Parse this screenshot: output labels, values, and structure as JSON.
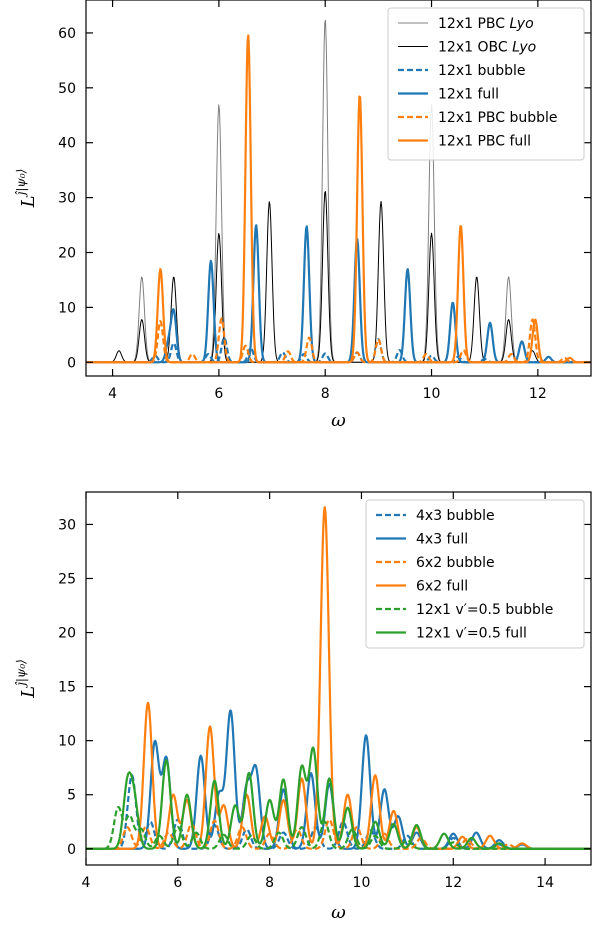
{
  "chart_data": [
    {
      "type": "line",
      "xlabel": "ω",
      "ylabel": "L^{ĵ|ψ0⟩}",
      "xlim": [
        3.5,
        13
      ],
      "ylim": [
        -2.5,
        66
      ],
      "xticks": [
        4,
        6,
        8,
        10,
        12
      ],
      "yticks": [
        0,
        10,
        20,
        30,
        40,
        50,
        60
      ],
      "grid": false,
      "legend_position": "top-right",
      "legend_title": "",
      "width": 0.05,
      "series": [
        {
          "name": "12x1 PBC Lyo",
          "color": "#808080",
          "style": "solid",
          "lw": 1,
          "base": 0,
          "peaks": [
            [
              4.55,
              15.6
            ],
            [
              6.0,
              47
            ],
            [
              8.0,
              62.7
            ],
            [
              10.0,
              47
            ],
            [
              11.45,
              15.6
            ]
          ]
        },
        {
          "name": "12x1 OBC Lyo",
          "color": "#000000",
          "style": "solid",
          "lw": 1,
          "base": 0,
          "peaks": [
            [
              4.12,
              2.1
            ],
            [
              4.55,
              7.8
            ],
            [
              5.15,
              15.6
            ],
            [
              6.0,
              23.5
            ],
            [
              6.95,
              29.3
            ],
            [
              8.0,
              31.3
            ],
            [
              9.05,
              29.3
            ],
            [
              10.0,
              23.5
            ],
            [
              10.85,
              15.6
            ],
            [
              11.45,
              7.8
            ],
            [
              11.9,
              2.1
            ]
          ]
        },
        {
          "name": "12x1 bubble",
          "color": "#1f77b4",
          "style": "dashed",
          "lw": 2,
          "base": 0,
          "peaks": [
            [
              4.8,
              1.2
            ],
            [
              5.15,
              3.5
            ],
            [
              5.8,
              1.5
            ],
            [
              6.1,
              4.5
            ],
            [
              6.6,
              2.6
            ],
            [
              7.2,
              1.8
            ],
            [
              7.6,
              1.5
            ],
            [
              8.0,
              1.6
            ],
            [
              8.6,
              1.8
            ],
            [
              9.0,
              4.2
            ],
            [
              9.4,
              2.2
            ],
            [
              10.0,
              1.2
            ],
            [
              10.5,
              1.0
            ],
            [
              11.0,
              0.6
            ]
          ]
        },
        {
          "name": "12x1 full",
          "color": "#1f77b4",
          "style": "solid",
          "lw": 2,
          "base": 0,
          "peaks": [
            [
              5.05,
              3.2
            ],
            [
              5.15,
              9.2
            ],
            [
              5.85,
              18.5
            ],
            [
              6.7,
              25
            ],
            [
              7.65,
              24.8
            ],
            [
              8.6,
              22.5
            ],
            [
              9.55,
              17
            ],
            [
              10.4,
              10.9
            ],
            [
              11.1,
              7.2
            ],
            [
              11.7,
              3.8
            ],
            [
              12.2,
              1.0
            ]
          ]
        },
        {
          "name": "12x1 PBC bubble",
          "color": "#ff7f0e",
          "style": "dashed",
          "lw": 2,
          "base": 0,
          "peaks": [
            [
              4.9,
              7.5
            ],
            [
              5.5,
              1.5
            ],
            [
              6.05,
              8.0
            ],
            [
              6.5,
              3.0
            ],
            [
              7.3,
              2.0
            ],
            [
              7.7,
              4.5
            ],
            [
              8.6,
              1.8
            ],
            [
              9.0,
              4.2
            ],
            [
              9.9,
              1.5
            ],
            [
              10.6,
              2.2
            ],
            [
              11.5,
              1.5
            ],
            [
              11.9,
              7.8
            ],
            [
              12.5,
              0.8
            ]
          ]
        },
        {
          "name": "12x1 PBC full",
          "color": "#ff7f0e",
          "style": "solid",
          "lw": 2,
          "base": 0,
          "peaks": [
            [
              4.9,
              17
            ],
            [
              6.55,
              59.7
            ],
            [
              8.65,
              48.8
            ],
            [
              10.55,
              25
            ],
            [
              11.95,
              7.8
            ],
            [
              12.6,
              0.8
            ]
          ]
        }
      ],
      "annotations": []
    },
    {
      "type": "line",
      "xlabel": "ω",
      "ylabel": "L^{ĵ|ψ0⟩}",
      "xlim": [
        4,
        15
      ],
      "ylim": [
        -1.5,
        33
      ],
      "xticks": [
        4,
        6,
        8,
        10,
        12,
        14
      ],
      "yticks": [
        0,
        5,
        10,
        15,
        20,
        25,
        30
      ],
      "grid": false,
      "legend_position": "top-right",
      "legend_title": "",
      "width": 0.09,
      "series": [
        {
          "name": "4x3 bubble",
          "color": "#1f77b4",
          "style": "dashed",
          "lw": 2,
          "base": 0,
          "peaks": [
            [
              5.0,
              6.8
            ],
            [
              5.4,
              2.5
            ],
            [
              6.0,
              2.7
            ],
            [
              6.8,
              2.2
            ],
            [
              7.5,
              1.8
            ],
            [
              8.3,
              1.5
            ],
            [
              9.0,
              2.0
            ],
            [
              9.6,
              2.5
            ],
            [
              10.2,
              1.7
            ],
            [
              11.0,
              1.2
            ],
            [
              12.0,
              1.0
            ],
            [
              13.0,
              0.4
            ]
          ]
        },
        {
          "name": "4x3 full",
          "color": "#1f77b4",
          "style": "solid",
          "lw": 2,
          "base": 0,
          "peaks": [
            [
              5.5,
              9.8
            ],
            [
              5.75,
              8.3
            ],
            [
              6.5,
              8.6
            ],
            [
              6.9,
              5.0
            ],
            [
              7.15,
              12.7
            ],
            [
              7.5,
              5.5
            ],
            [
              7.7,
              7.2
            ],
            [
              8.3,
              5.5
            ],
            [
              8.9,
              7.0
            ],
            [
              9.3,
              6.0
            ],
            [
              10.1,
              10.5
            ],
            [
              10.5,
              5.5
            ],
            [
              10.8,
              3.0
            ],
            [
              11.2,
              1.5
            ],
            [
              12.0,
              1.4
            ],
            [
              12.5,
              1.5
            ],
            [
              13.0,
              0.8
            ],
            [
              13.5,
              0.4
            ]
          ]
        },
        {
          "name": "6x2 bubble",
          "color": "#ff7f0e",
          "style": "dashed",
          "lw": 2,
          "base": 0,
          "peaks": [
            [
              4.9,
              2.0
            ],
            [
              5.3,
              2.0
            ],
            [
              5.8,
              1.5
            ],
            [
              6.3,
              2.3
            ],
            [
              6.8,
              2.6
            ],
            [
              7.4,
              2.0
            ],
            [
              8.0,
              1.4
            ],
            [
              8.6,
              1.8
            ],
            [
              9.3,
              2.7
            ],
            [
              9.9,
              2.0
            ],
            [
              10.5,
              1.4
            ],
            [
              11.3,
              1.0
            ],
            [
              12.3,
              0.9
            ],
            [
              13.2,
              0.4
            ]
          ]
        },
        {
          "name": "6x2 full",
          "color": "#ff7f0e",
          "style": "solid",
          "lw": 2,
          "base": 0,
          "peaks": [
            [
              5.35,
              13.5
            ],
            [
              5.9,
              5.0
            ],
            [
              6.2,
              4.5
            ],
            [
              6.7,
              11.3
            ],
            [
              7.0,
              4.0
            ],
            [
              7.5,
              5.0
            ],
            [
              7.9,
              3.0
            ],
            [
              8.3,
              4.5
            ],
            [
              8.7,
              6.5
            ],
            [
              9.2,
              31.6
            ],
            [
              9.7,
              5.0
            ],
            [
              10.3,
              6.8
            ],
            [
              10.7,
              3.5
            ],
            [
              11.2,
              2.0
            ],
            [
              12.2,
              1.1
            ],
            [
              12.8,
              1.2
            ],
            [
              13.5,
              0.5
            ]
          ]
        },
        {
          "name": "12x1 v′=0.5 bubble",
          "color": "#2ca02c",
          "style": "dashed",
          "lw": 2,
          "base": 0,
          "peaks": [
            [
              4.7,
              3.8
            ],
            [
              4.95,
              3.0
            ],
            [
              5.2,
              1.8
            ],
            [
              5.6,
              1.2
            ],
            [
              6.0,
              2.0
            ],
            [
              6.4,
              1.5
            ],
            [
              7.0,
              1.3
            ],
            [
              7.6,
              1.2
            ],
            [
              8.2,
              1.5
            ],
            [
              8.7,
              2.0
            ],
            [
              9.2,
              2.5
            ],
            [
              9.8,
              1.8
            ],
            [
              10.3,
              1.2
            ],
            [
              11.0,
              0.8
            ],
            [
              12.0,
              0.6
            ]
          ]
        },
        {
          "name": "12x1 v′=0.5 full",
          "color": "#2ca02c",
          "style": "solid",
          "lw": 2,
          "base": 0,
          "peaks": [
            [
              4.9,
              5.6
            ],
            [
              5.05,
              4.2
            ],
            [
              5.75,
              8.2
            ],
            [
              6.2,
              5.0
            ],
            [
              6.8,
              6.3
            ],
            [
              7.25,
              4.0
            ],
            [
              7.55,
              7.0
            ],
            [
              8.0,
              4.5
            ],
            [
              8.3,
              6.4
            ],
            [
              8.7,
              7.5
            ],
            [
              8.95,
              9.2
            ],
            [
              9.3,
              6.5
            ],
            [
              9.7,
              3.8
            ],
            [
              10.3,
              2.5
            ],
            [
              10.7,
              2.3
            ],
            [
              11.2,
              2.2
            ],
            [
              11.8,
              1.4
            ],
            [
              12.4,
              1.0
            ],
            [
              13.0,
              0.5
            ]
          ]
        }
      ],
      "annotations": []
    }
  ]
}
